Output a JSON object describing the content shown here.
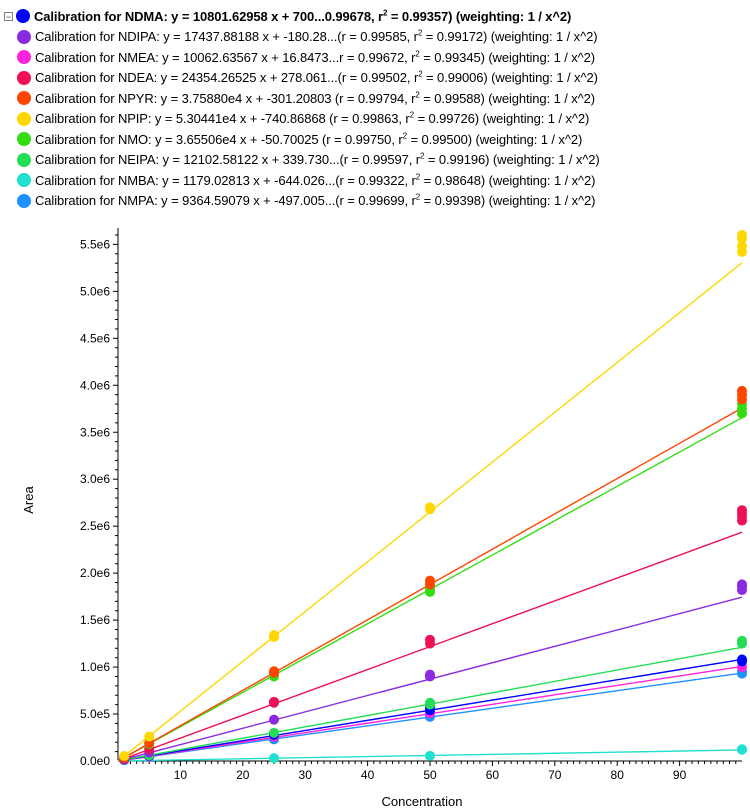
{
  "legend": [
    {
      "id": "ndma",
      "color": "#0000ff",
      "bold": true,
      "pre": "Calibration for NDMA: y = 10801.62958 x + 700...0.99678, r",
      "post": " = 0.99357)  (weighting: 1 / x^2)"
    },
    {
      "id": "ndipa",
      "color": "#8a2be2",
      "bold": false,
      "pre": "Calibration for NDIPA: y = 17437.88188 x + -180.28...(r = 0.99585, r",
      "post": " = 0.99172)  (weighting: 1 / x^2)"
    },
    {
      "id": "nmea",
      "color": "#ff22dd",
      "bold": false,
      "pre": "Calibration for NMEA: y = 10062.63567 x + 16.8473...r = 0.99672, r",
      "post": " = 0.99345)  (weighting: 1 / x^2)"
    },
    {
      "id": "ndea",
      "color": "#ee1155",
      "bold": false,
      "pre": "Calibration for NDEA: y = 24354.26525 x + 278.061...(r = 0.99502, r",
      "post": " = 0.99006)  (weighting: 1 / x^2)"
    },
    {
      "id": "npyr",
      "color": "#ff4500",
      "bold": false,
      "pre": "Calibration for NPYR: y = 3.75880e4 x + -301.20803 (r = 0.99794, r",
      "post": " = 0.99588)  (weighting: 1 / x^2)"
    },
    {
      "id": "npip",
      "color": "#ffd700",
      "bold": false,
      "pre": "Calibration for NPIP: y = 5.30441e4 x + -740.86868 (r = 0.99863, r",
      "post": " = 0.99726)  (weighting: 1 / x^2)"
    },
    {
      "id": "nmo",
      "color": "#33dd11",
      "bold": false,
      "pre": "Calibration for NMO: y = 3.65506e4 x + -50.70025 (r = 0.99750, r",
      "post": " = 0.99500)  (weighting: 1 / x^2)"
    },
    {
      "id": "neipa",
      "color": "#22dd55",
      "bold": false,
      "pre": "Calibration for NEIPA: y = 12102.58122 x + 339.730...(r = 0.99597, r",
      "post": " = 0.99196)  (weighting: 1 / x^2)"
    },
    {
      "id": "nmba",
      "color": "#22e0d0",
      "bold": false,
      "pre": "Calibration for NMBA: y = 1179.02813 x + -644.026...(r = 0.99322, r",
      "post": " = 0.98648)  (weighting: 1 / x^2)"
    },
    {
      "id": "nmpa",
      "color": "#1e90ff",
      "bold": false,
      "pre": "Calibration for NMPA: y = 9364.59079 x + -497.005...(r = 0.99699, r",
      "post": " = 0.99398)  (weighting: 1 / x^2)"
    }
  ],
  "collapse_symbol": "−",
  "sup_text": "2",
  "chart_data": {
    "type": "scatter",
    "xlabel": "Concentration",
    "ylabel": "Area",
    "xlim": [
      0,
      100
    ],
    "ylim": [
      0,
      5600000
    ],
    "xticks": [
      10,
      20,
      30,
      40,
      50,
      60,
      70,
      80,
      90
    ],
    "yticks": [
      {
        "value": 0,
        "label": "0.0e0"
      },
      {
        "value": 500000,
        "label": "5.0e5"
      },
      {
        "value": 1000000,
        "label": "1.0e6"
      },
      {
        "value": 1500000,
        "label": "1.5e6"
      },
      {
        "value": 2000000,
        "label": "2.0e6"
      },
      {
        "value": 2500000,
        "label": "2.5e6"
      },
      {
        "value": 3000000,
        "label": "3.0e6"
      },
      {
        "value": 3500000,
        "label": "3.5e6"
      },
      {
        "value": 4000000,
        "label": "4.0e6"
      },
      {
        "value": 4500000,
        "label": "4.5e6"
      },
      {
        "value": 5000000,
        "label": "5.0e6"
      },
      {
        "value": 5500000,
        "label": "5.5e6"
      }
    ],
    "grid": false,
    "series": [
      {
        "name": "NMBA",
        "color": "#22e0d0",
        "slope": 1179.02813,
        "intercept": -644.026,
        "points": [
          [
            25,
            30000
          ],
          [
            50,
            55000
          ],
          [
            100,
            120000
          ],
          [
            100,
            125000
          ]
        ]
      },
      {
        "name": "NMPA",
        "color": "#1e90ff",
        "slope": 9364.59079,
        "intercept": -497.005,
        "points": [
          [
            1,
            9000
          ],
          [
            5,
            45000
          ],
          [
            25,
            230000
          ],
          [
            50,
            470000
          ],
          [
            50,
            480000
          ],
          [
            100,
            930000
          ],
          [
            100,
            950000
          ]
        ]
      },
      {
        "name": "NMEA",
        "color": "#ff22dd",
        "slope": 10062.63567,
        "intercept": 16.8473,
        "points": [
          [
            1,
            10000
          ],
          [
            5,
            50000
          ],
          [
            25,
            260000
          ],
          [
            50,
            510000
          ],
          [
            100,
            1000000
          ]
        ]
      },
      {
        "name": "NDMA",
        "color": "#0000ff",
        "slope": 10801.62958,
        "intercept": 700,
        "points": [
          [
            1,
            11000
          ],
          [
            5,
            55000
          ],
          [
            25,
            280000
          ],
          [
            50,
            540000
          ],
          [
            50,
            570000
          ],
          [
            100,
            1060000
          ],
          [
            100,
            1080000
          ]
        ]
      },
      {
        "name": "NEIPA",
        "color": "#22dd55",
        "slope": 12102.58122,
        "intercept": 339.73,
        "points": [
          [
            1,
            12000
          ],
          [
            5,
            60000
          ],
          [
            25,
            300000
          ],
          [
            50,
            600000
          ],
          [
            50,
            620000
          ],
          [
            100,
            1250000
          ],
          [
            100,
            1280000
          ]
        ]
      },
      {
        "name": "NDIPA",
        "color": "#8a2be2",
        "slope": 17437.88188,
        "intercept": -180.28,
        "points": [
          [
            1,
            17000
          ],
          [
            5,
            90000
          ],
          [
            25,
            440000
          ],
          [
            50,
            900000
          ],
          [
            50,
            920000
          ],
          [
            100,
            1820000
          ],
          [
            100,
            1860000
          ],
          [
            100,
            1880000
          ]
        ]
      },
      {
        "name": "NDEA",
        "color": "#ee1155",
        "slope": 24354.26525,
        "intercept": 278.061,
        "points": [
          [
            1,
            25000
          ],
          [
            5,
            125000
          ],
          [
            25,
            620000
          ],
          [
            25,
            630000
          ],
          [
            50,
            1250000
          ],
          [
            50,
            1290000
          ],
          [
            100,
            2560000
          ],
          [
            100,
            2600000
          ],
          [
            100,
            2640000
          ],
          [
            100,
            2670000
          ]
        ]
      },
      {
        "name": "NMO",
        "color": "#33dd11",
        "slope": 36550.6,
        "intercept": -50.70025,
        "points": [
          [
            1,
            37000
          ],
          [
            5,
            180000
          ],
          [
            25,
            900000
          ],
          [
            25,
            920000
          ],
          [
            50,
            1800000
          ],
          [
            50,
            1840000
          ],
          [
            100,
            3700000
          ],
          [
            100,
            3750000
          ],
          [
            100,
            3800000
          ]
        ]
      },
      {
        "name": "NPYR",
        "color": "#ff4500",
        "slope": 37588.0,
        "intercept": -301.20803,
        "points": [
          [
            1,
            38000
          ],
          [
            5,
            190000
          ],
          [
            25,
            940000
          ],
          [
            25,
            955000
          ],
          [
            50,
            1880000
          ],
          [
            50,
            1920000
          ],
          [
            100,
            3850000
          ],
          [
            100,
            3900000
          ],
          [
            100,
            3940000
          ]
        ]
      },
      {
        "name": "NPIP",
        "color": "#ffd700",
        "slope": 53044.1,
        "intercept": -740.86868,
        "points": [
          [
            1,
            53000
          ],
          [
            5,
            260000
          ],
          [
            25,
            1320000
          ],
          [
            25,
            1340000
          ],
          [
            50,
            2680000
          ],
          [
            50,
            2700000
          ],
          [
            100,
            5420000
          ],
          [
            100,
            5480000
          ],
          [
            100,
            5560000
          ],
          [
            100,
            5600000
          ]
        ]
      }
    ]
  }
}
